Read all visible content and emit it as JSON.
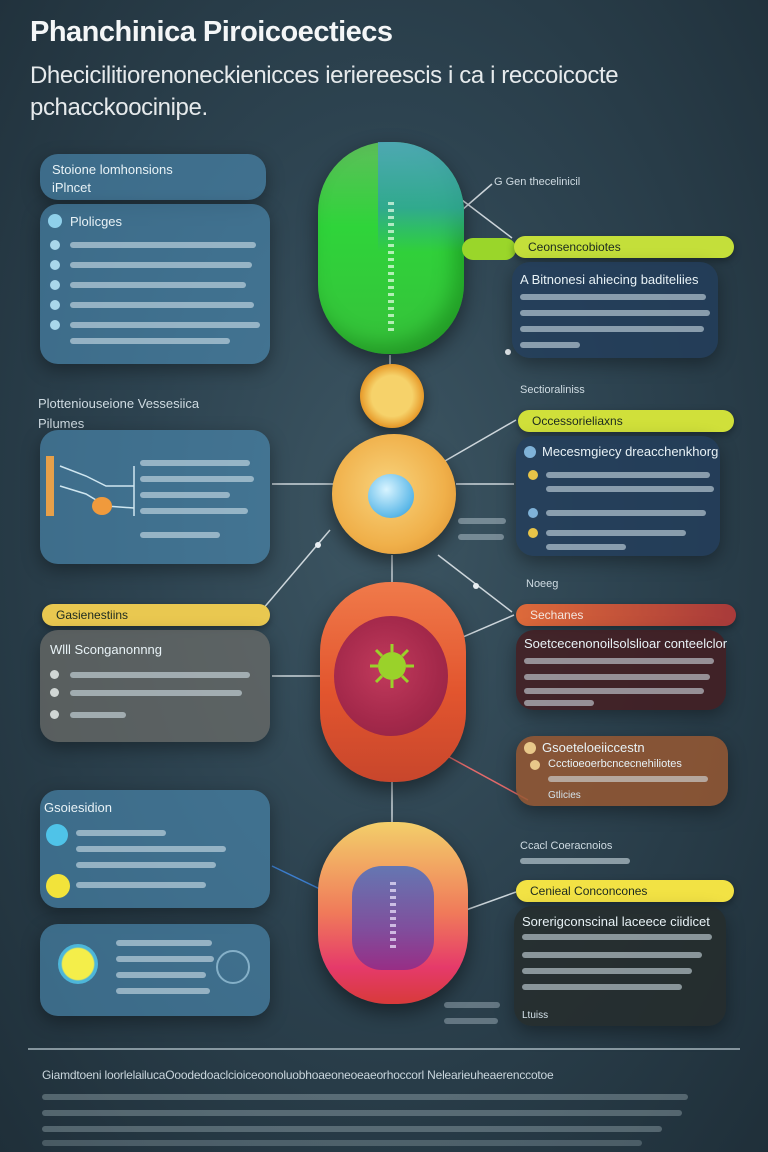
{
  "header": {
    "title": "Phanchinica Piroicoectiecs",
    "subtitle_line1": "Dhecicilitiorenoneckienicces ieriereescis i ca i reccoicocte",
    "subtitle_line2": "pchacckoocinipe."
  },
  "left_panels": [
    {
      "title": "Stoione lomhonsions",
      "title2": "iPlncet",
      "heading": "Plolicges"
    },
    {
      "title": "Plotteniouseione Vessesiica",
      "title2": "Pilumes"
    },
    {
      "tag": "Gasienestiins",
      "heading": "Wlll Sconganonnng"
    },
    {
      "title": "Gsoiesidion"
    }
  ],
  "right_panels": [
    {
      "top_label": "G Gen thecelinicil",
      "tag": "Ceonsencobiotes",
      "heading": "A Bitnonesi ahiecing baditeliies"
    },
    {
      "top_label": "Sectioraliniss",
      "tag": "Occessorieliaxns",
      "heading": "Mecesmgiecy dreacchenkhorg"
    },
    {
      "top_label": "Noeeg",
      "tag": "Sechanes",
      "heading": "Soetcecenonoilsolslioar conteelclor"
    },
    {
      "heading": "Gsoeteloeiiccestn",
      "heading2": "Ccctioeoerbcncecnehiliotes",
      "footer": "Gtlicies"
    },
    {
      "top_label": "Ccacl Coeracnoios",
      "tag": "Cenieal Conconcones",
      "heading": "Sorerigconscinal laceece ciidicet",
      "footer": "Ltuiss"
    }
  ],
  "footer": {
    "title": "Giamdtoeni loorlelailucaOoodedoaclcioiceoonoluobhoaeoneoeaeorhoccorl Nelearieuheaerenccotoe"
  },
  "colors": {
    "green_tag": "#b6dc2a",
    "yellow_tag": "#e8d74a",
    "orange_tag": "#e8b448",
    "red_tag": "#d96a3c",
    "bright_yellow_tag": "#f1e84a"
  }
}
